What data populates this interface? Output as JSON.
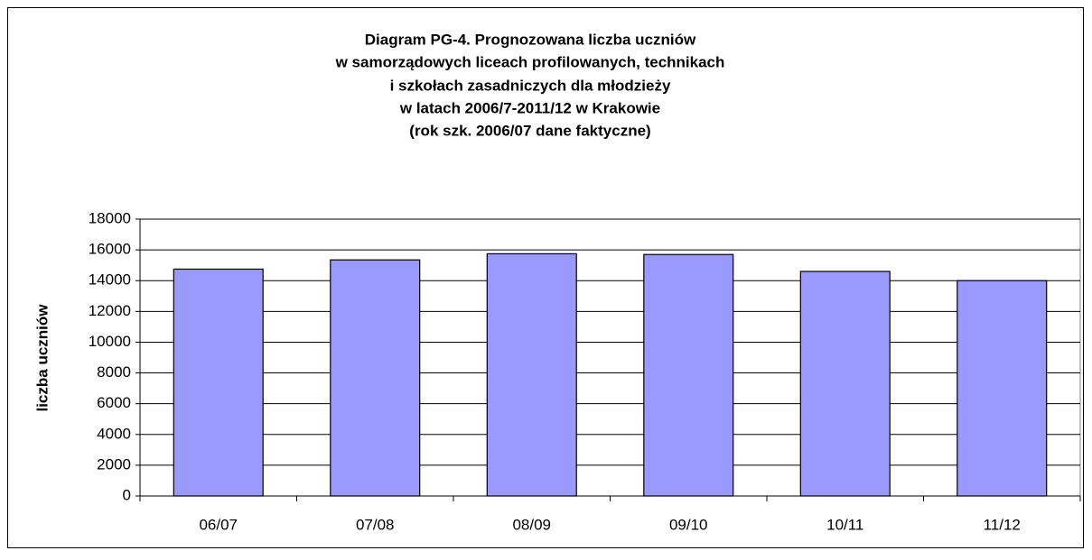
{
  "chart_data": {
    "type": "bar",
    "title": [
      "Diagram PG-4. Prognozowana liczba uczniów",
      "w samorządowych liceach profilowanych, technikach",
      "i szkołach zasadniczych dla młodzieży",
      "w latach 2006/7-2011/12 w Krakowie",
      "(rok szk. 2006/07 dane faktyczne)"
    ],
    "y_label": "liczba uczniów",
    "categories": [
      "06/07",
      "07/08",
      "08/09",
      "09/10",
      "10/11",
      "11/12"
    ],
    "values": [
      14750,
      15350,
      15750,
      15700,
      14600,
      14000
    ],
    "color": "#9999ff",
    "ylim": [
      0,
      18000
    ],
    "yticks": [
      0,
      2000,
      4000,
      6000,
      8000,
      10000,
      12000,
      14000,
      16000,
      18000
    ],
    "grid": true
  }
}
